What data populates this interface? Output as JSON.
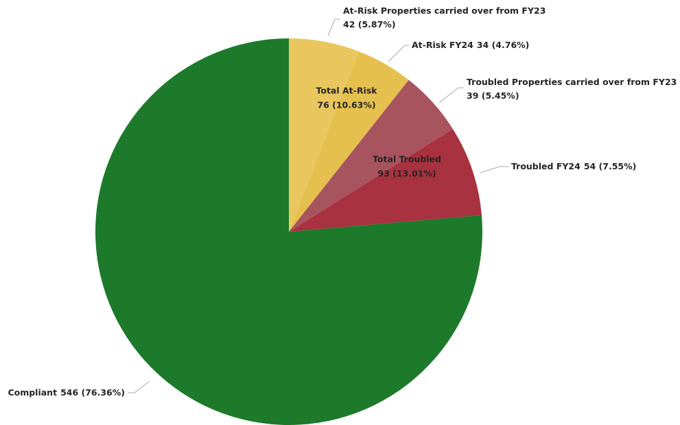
{
  "chart_data": {
    "type": "pie",
    "categories": [
      "At-Risk Properties carried over from FY23",
      "At-Risk FY24",
      "Troubled Properties carried over from FY23",
      "Troubled FY24",
      "Compliant"
    ],
    "values": [
      42,
      34,
      39,
      54,
      546
    ],
    "value_labels": [
      "42 (5.87%)",
      "34 (4.76%)",
      "39 (5.45%)",
      "54 (7.55%)",
      "546 (76.36%)"
    ],
    "colors": [
      "#e9c75e",
      "#e6c04f",
      "#a8545f",
      "#a8323f",
      "#1d7a2b"
    ],
    "groups": [
      {
        "name": "Total At-Risk",
        "label": "76 (10.63%)"
      },
      {
        "name": "Total Troubled",
        "label": "93 (13.01%)"
      }
    ]
  }
}
